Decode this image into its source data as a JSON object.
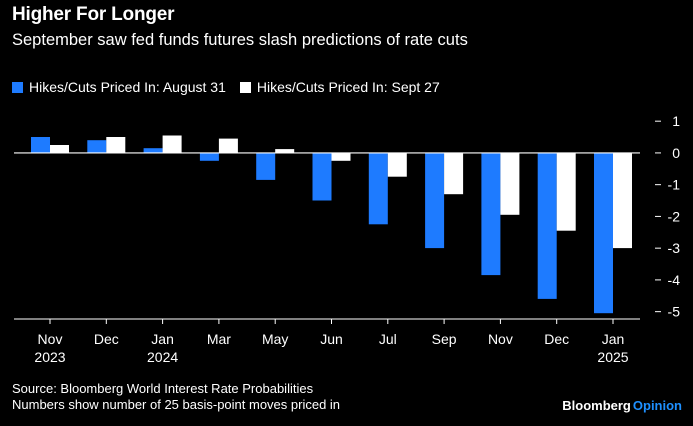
{
  "header": {
    "title": "Higher For Longer",
    "subtitle": "September saw fed funds futures slash predictions of rate cuts"
  },
  "footer": {
    "source": "Source: Bloomberg World Interest Rate Probabilities",
    "note": "Numbers show number of 25 basis-point moves priced in"
  },
  "brand": {
    "name": "Bloomberg",
    "suffix": "Opinion",
    "name_color": "#ffffff",
    "suffix_color": "#1e90ff"
  },
  "colors": {
    "background": "#000000",
    "series_1": "#1e7bff",
    "series_2": "#ffffff",
    "axis": "#ffffff"
  },
  "chart_data": {
    "type": "bar",
    "title": "Higher For Longer",
    "subtitle": "September saw fed funds futures slash predictions of rate cuts",
    "categories": [
      "Nov",
      "Dec",
      "Jan",
      "Mar",
      "May",
      "Jun",
      "Jul",
      "Sep",
      "Nov",
      "Dec",
      "Jan"
    ],
    "year_labels": [
      "2023",
      "",
      "2024",
      "",
      "",
      "",
      "",
      "",
      "",
      "",
      "2025"
    ],
    "series": [
      {
        "name": "Hikes/Cuts Priced In: August 31",
        "color": "#1e7bff",
        "values": [
          0.5,
          0.4,
          0.15,
          -0.25,
          -0.85,
          -1.5,
          -2.25,
          -3.0,
          -3.85,
          -4.6,
          -5.05
        ]
      },
      {
        "name": "Hikes/Cuts Priced In: Sept 27",
        "color": "#ffffff",
        "values": [
          0.25,
          0.5,
          0.55,
          0.45,
          0.12,
          -0.25,
          -0.75,
          -1.3,
          -1.95,
          -2.45,
          -3.0
        ]
      }
    ],
    "yticks": [
      1,
      0,
      -1,
      -2,
      -3,
      -4,
      -5
    ],
    "ylim": [
      -5.2,
      1.1
    ],
    "ylabel": "",
    "xlabel": "",
    "y_axis_position": "right",
    "grid": false,
    "legend_position": "top-left"
  }
}
